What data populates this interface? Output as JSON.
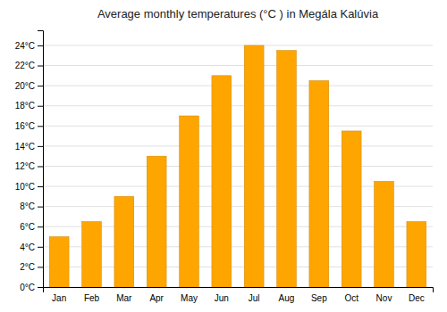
{
  "chart_data": {
    "type": "bar",
    "title": "Average monthly temperatures (°C ) in Megála Kalúvia",
    "categories": [
      "Jan",
      "Feb",
      "Mar",
      "Apr",
      "May",
      "Jun",
      "Jul",
      "Aug",
      "Sep",
      "Oct",
      "Nov",
      "Dec"
    ],
    "values": [
      5.0,
      6.5,
      9.0,
      13.0,
      17.0,
      21.0,
      24.0,
      23.5,
      20.5,
      15.5,
      10.5,
      6.5
    ],
    "color": "#FFA500",
    "ylim": [
      0,
      25.5
    ],
    "yticks": [
      {
        "value": 0,
        "label": "0°C"
      },
      {
        "value": 2,
        "label": "2°C"
      },
      {
        "value": 4,
        "label": "4°C"
      },
      {
        "value": 6,
        "label": "6°C"
      },
      {
        "value": 8,
        "label": "8°C"
      },
      {
        "value": 10,
        "label": "10°C"
      },
      {
        "value": 12,
        "label": "12°C"
      },
      {
        "value": 14,
        "label": "14°C"
      },
      {
        "value": 16,
        "label": "16°C"
      },
      {
        "value": 18,
        "label": "18°C"
      },
      {
        "value": 20,
        "label": "20°C"
      },
      {
        "value": 22,
        "label": "22°C"
      },
      {
        "value": 24,
        "label": "24°C"
      }
    ],
    "grid": true
  }
}
